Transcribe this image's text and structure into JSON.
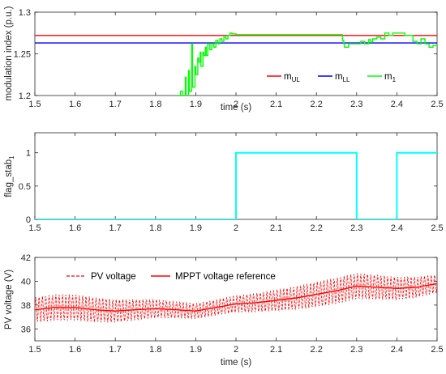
{
  "chart_data": [
    {
      "type": "line",
      "xlabel": "time (s)",
      "ylabel": "modulation index (p.u.)",
      "xlim": [
        1.5,
        2.5
      ],
      "ylim": [
        1.2,
        1.3
      ],
      "x_ticks": [
        "1.5",
        "1.6",
        "1.7",
        "1.8",
        "1.9",
        "2",
        "2.1",
        "2.2",
        "2.3",
        "2.4",
        "2.5"
      ],
      "y_ticks": [
        "1.2",
        "1.25",
        "1.3"
      ],
      "legend_position": "bottom-right",
      "legend": [
        {
          "base": "m",
          "sub": "UL"
        },
        {
          "base": "m",
          "sub": "LL"
        },
        {
          "base": "m",
          "sub": "1"
        }
      ],
      "colors": [
        "#ff0000",
        "#0000ff",
        "#00ff00"
      ],
      "series": [
        {
          "name": "m_UL",
          "x": [
            1.5,
            2.5
          ],
          "y": [
            1.272,
            1.272
          ]
        },
        {
          "name": "m_LL",
          "x": [
            1.5,
            2.5
          ],
          "y": [
            1.263,
            1.263
          ]
        },
        {
          "name": "m_1",
          "x": [
            1.85,
            1.862,
            1.868,
            1.874,
            1.876,
            1.882,
            1.884,
            1.89,
            1.892,
            1.898,
            1.9,
            1.905,
            1.907,
            1.911,
            1.913,
            1.918,
            1.92,
            1.924,
            1.926,
            1.93,
            1.935,
            1.94,
            1.945,
            1.95,
            1.955,
            1.96,
            1.965,
            1.97,
            1.975,
            1.98,
            1.985,
            1.99,
            2.0,
            2.05,
            2.1,
            2.15,
            2.2,
            2.25,
            2.265,
            2.268,
            2.27,
            2.28,
            2.3,
            2.31,
            2.32,
            2.33,
            2.335,
            2.34,
            2.35,
            2.36,
            2.37,
            2.38,
            2.39,
            2.4,
            2.42,
            2.44,
            2.45,
            2.46,
            2.47,
            2.48,
            2.49,
            2.5
          ],
          "y": [
            1.2,
            1.205,
            1.2,
            1.222,
            1.2,
            1.23,
            1.205,
            1.262,
            1.21,
            1.235,
            1.225,
            1.245,
            1.24,
            1.252,
            1.235,
            1.252,
            1.248,
            1.258,
            1.248,
            1.262,
            1.255,
            1.262,
            1.258,
            1.266,
            1.262,
            1.268,
            1.265,
            1.27,
            1.268,
            1.272,
            1.275,
            1.274,
            1.273,
            1.273,
            1.273,
            1.273,
            1.273,
            1.273,
            1.266,
            1.262,
            1.258,
            1.262,
            1.262,
            1.265,
            1.262,
            1.267,
            1.264,
            1.268,
            1.27,
            1.268,
            1.275,
            1.272,
            1.275,
            1.275,
            1.272,
            1.265,
            1.262,
            1.268,
            1.262,
            1.258,
            1.26,
            1.257
          ]
        }
      ]
    },
    {
      "type": "line",
      "xlabel": "",
      "ylabel": "flag_stab",
      "ylabel_sub": "1",
      "xlim": [
        1.5,
        2.5
      ],
      "ylim": [
        0,
        1.3
      ],
      "x_ticks": [
        "1.5",
        "1.6",
        "1.7",
        "1.8",
        "1.9",
        "2",
        "2.1",
        "2.2",
        "2.3",
        "2.4",
        "2.5"
      ],
      "y_ticks": [
        "0",
        "0.5",
        "1"
      ],
      "colors": [
        "#00ffff"
      ],
      "series": [
        {
          "name": "",
          "x": [
            1.5,
            2.0,
            2.0,
            2.3,
            2.3,
            2.4,
            2.4,
            2.5
          ],
          "y": [
            0,
            0,
            1,
            1,
            0,
            0,
            1,
            1
          ]
        }
      ]
    },
    {
      "type": "line",
      "xlabel": "time (s)",
      "ylabel": "PV voltage (V)",
      "xlim": [
        1.5,
        2.5
      ],
      "ylim": [
        35,
        42
      ],
      "x_ticks": [
        "1.5",
        "1.6",
        "1.7",
        "1.8",
        "1.9",
        "2",
        "2.1",
        "2.2",
        "2.3",
        "2.4",
        "2.5"
      ],
      "y_ticks": [
        "36",
        "38",
        "40",
        "42"
      ],
      "legend_position": "top-left",
      "legend": [
        {
          "base": "PV voltage",
          "sub": ""
        },
        {
          "base": "MPPT voltage reference",
          "sub": ""
        }
      ],
      "colors": [
        "#ff0000",
        "#ff0000"
      ],
      "series": [
        {
          "name": "MPPT voltage reference",
          "x": [
            1.5,
            1.55,
            1.6,
            1.65,
            1.7,
            1.75,
            1.8,
            1.85,
            1.9,
            1.95,
            2.0,
            2.05,
            2.1,
            2.15,
            2.2,
            2.25,
            2.3,
            2.35,
            2.4,
            2.45,
            2.5
          ],
          "y": [
            37.6,
            37.8,
            37.8,
            37.6,
            37.5,
            37.6,
            37.7,
            37.6,
            37.5,
            37.8,
            38.1,
            38.2,
            38.4,
            38.6,
            38.9,
            39.2,
            39.6,
            39.5,
            39.4,
            39.5,
            39.8
          ]
        },
        {
          "name": "PV voltage",
          "ripple_amplitude": 1.1
        }
      ]
    }
  ]
}
